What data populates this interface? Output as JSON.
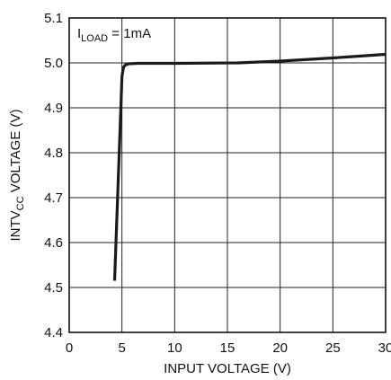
{
  "chart_data": {
    "type": "line",
    "xlabel": "INPUT VOLTAGE (V)",
    "ylabel": {
      "prefix": "INTV",
      "subscript": "CC",
      "suffix": " VOLTAGE (V)"
    },
    "xlim": [
      0,
      30
    ],
    "ylim": [
      4.4,
      5.1
    ],
    "xticks": [
      0,
      5,
      10,
      15,
      20,
      25,
      30
    ],
    "xtick_labels": [
      "0",
      "5",
      "10",
      "15",
      "20",
      "25",
      "30"
    ],
    "yticks": [
      4.4,
      4.5,
      4.6,
      4.7,
      4.8,
      4.9,
      5.0,
      5.1
    ],
    "ytick_labels": [
      "4.4",
      "4.5",
      "4.6",
      "4.7",
      "4.8",
      "4.9",
      "5.0",
      "5.1"
    ],
    "grid": true,
    "annotation": {
      "prefix": "I",
      "subscript": "LOAD",
      "suffix": " = 1mA"
    },
    "series": [
      {
        "color": "#1a1a1a",
        "x": [
          4.3,
          5.0,
          5.15,
          5.3,
          5.6,
          6.5,
          10,
          16,
          20,
          25,
          30
        ],
        "y": [
          4.515,
          4.97,
          4.99,
          4.995,
          4.998,
          4.999,
          4.999,
          5.0,
          5.004,
          5.011,
          5.019
        ]
      }
    ]
  }
}
